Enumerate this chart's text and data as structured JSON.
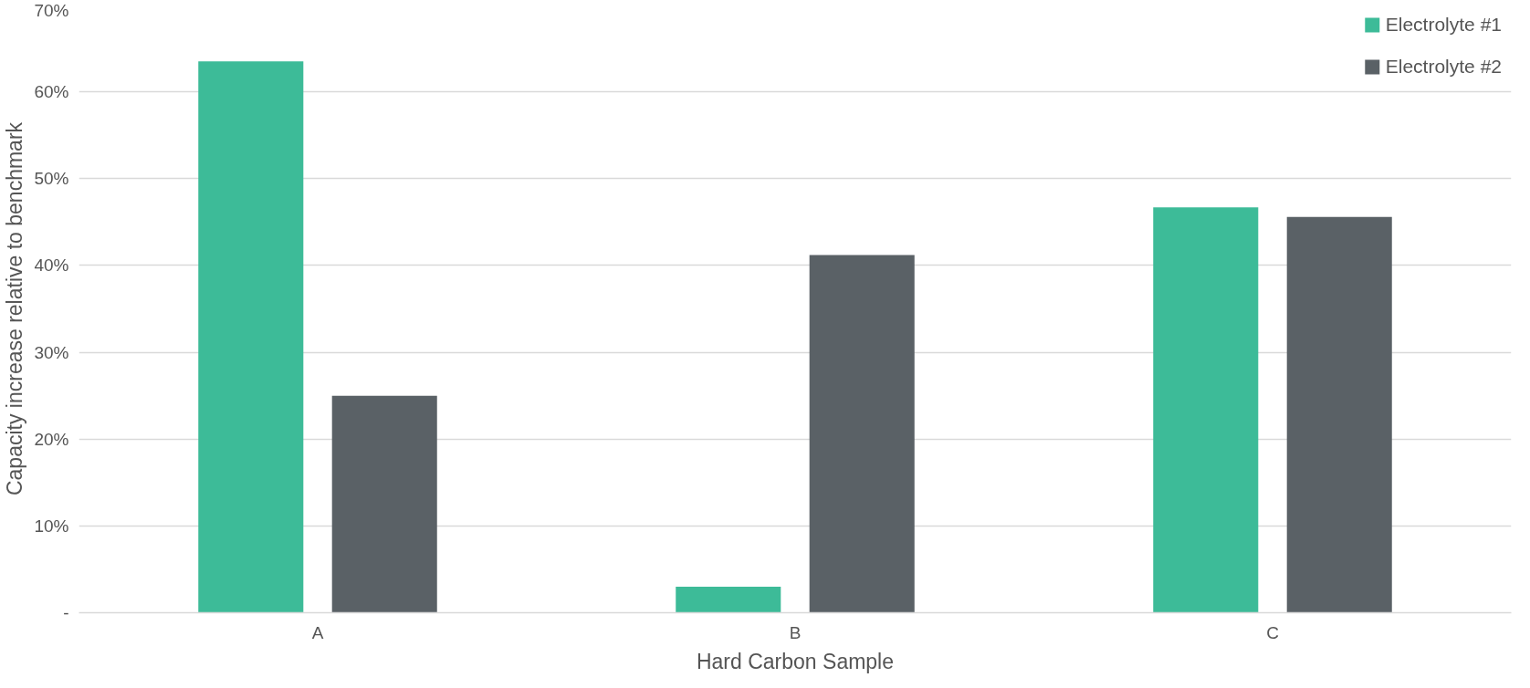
{
  "chart_data": {
    "type": "bar",
    "xlabel": "Hard Carbon Sample",
    "ylabel": "Capacity increase relative to benchmark",
    "categories": [
      "A",
      "B",
      "C"
    ],
    "series": [
      {
        "name": "Electrolyte #1",
        "color": "#3dbb98",
        "values": [
          63.5,
          3,
          46.7
        ]
      },
      {
        "name": "Electrolyte #2",
        "color": "#5a6166",
        "values": [
          25,
          41.2,
          45.6
        ]
      }
    ],
    "ylim": [
      0,
      70
    ],
    "yticks": [
      {
        "value": 0,
        "label": "-"
      },
      {
        "value": 10,
        "label": "10%"
      },
      {
        "value": 20,
        "label": "20%"
      },
      {
        "value": 30,
        "label": "30%"
      },
      {
        "value": 40,
        "label": "40%"
      },
      {
        "value": 50,
        "label": "50%"
      },
      {
        "value": 60,
        "label": "60%"
      },
      {
        "value": 70,
        "label": "70%"
      }
    ],
    "grid": "y",
    "legend": "top right"
  }
}
